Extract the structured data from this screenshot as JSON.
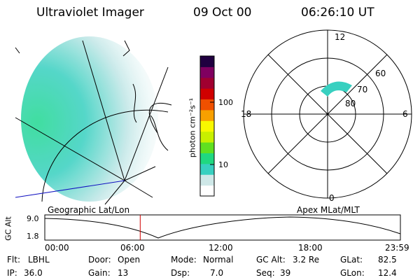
{
  "header": {
    "instrument": "Ultraviolet Imager",
    "date": "09 Oct 00",
    "time": "06:26:10 UT"
  },
  "colorbar": {
    "unit": "photon cm⁻²s⁻¹",
    "tick_100": "100",
    "tick_10": "10",
    "colors": [
      "#ffffff",
      "#cfe8e8",
      "#38d0c0",
      "#20d880",
      "#60e020",
      "#c8f000",
      "#f8f800",
      "#f8a000",
      "#f05000",
      "#d00000",
      "#a00030",
      "#800060",
      "#200040"
    ]
  },
  "polar_plot": {
    "mlt_labels": {
      "top": "12",
      "left": "18",
      "right": "6",
      "bottom": "0"
    },
    "lat_labels": {
      "l60": "60",
      "l70": "70",
      "l80": "80"
    }
  },
  "panel_labels": {
    "left": "Geographic Lat/Lon",
    "right": "Apex MLat/MLT"
  },
  "altitude_plot": {
    "axis_label": "GC Alt",
    "y_ticks": [
      "9.0",
      "1.8"
    ],
    "x_ticks": [
      "00:00",
      "06:00",
      "12:00",
      "18:00",
      "23:59"
    ],
    "current_time_marker_hours": 6.44
  },
  "status": {
    "flt_label": "Flt:",
    "flt_value": "LBHL",
    "ip_label": "IP:",
    "ip_value": "36.0",
    "door_label": "Door:",
    "door_value": "Open",
    "gain_label": "Gain:",
    "gain_value": "13",
    "mode_label": "Mode:",
    "mode_value": "Normal",
    "dsp_label": "Dsp:",
    "dsp_value": "7.0",
    "gcalt_label": "GC Alt:",
    "gcalt_value": "3.2 Re",
    "seq_label": "Seq:",
    "seq_value": "39",
    "glat_label": "GLat:",
    "glat_value": "82.5",
    "glon_label": "GLon:",
    "glon_value": "12.4"
  }
}
